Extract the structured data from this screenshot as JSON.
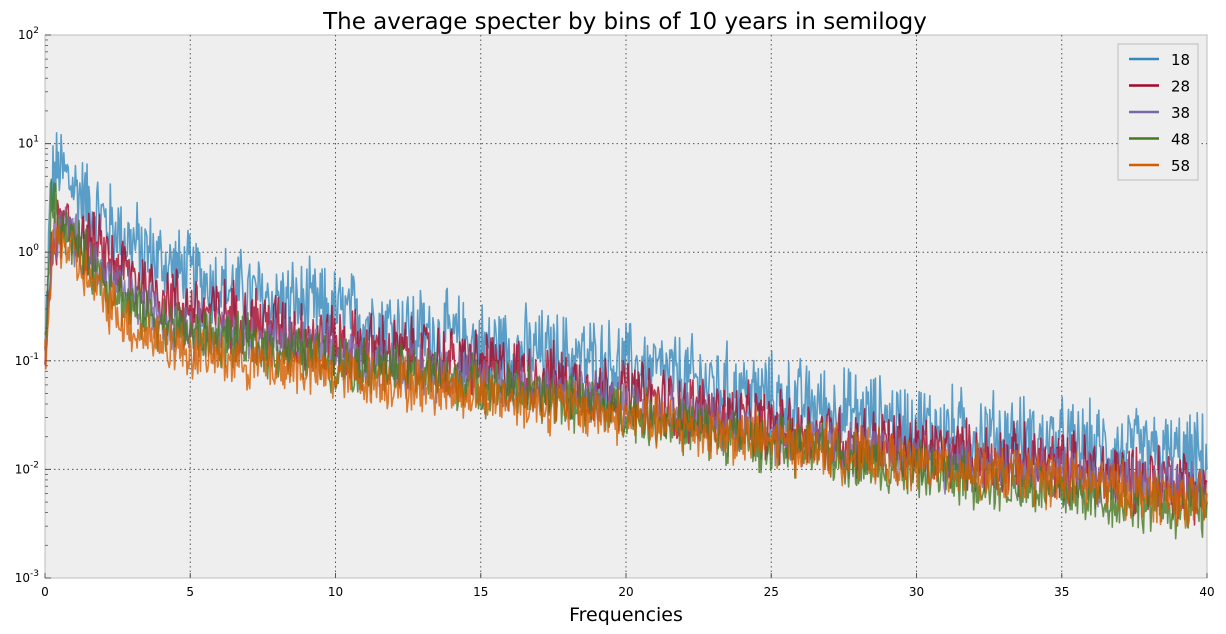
{
  "chart_data": {
    "type": "line",
    "title": "The average specter by bins of 10 years in semilogy",
    "xlabel": "Frequencies",
    "ylabel": "",
    "xlim": [
      0,
      40
    ],
    "ylim": [
      0.001,
      100
    ],
    "yscale": "log",
    "grid": true,
    "legend_position": "top-right",
    "x_ticks": [
      0,
      5,
      10,
      15,
      20,
      25,
      30,
      35,
      40
    ],
    "y_ticks": [
      {
        "value": 0.001,
        "base": "10",
        "exp": "-3"
      },
      {
        "value": 0.01,
        "base": "10",
        "exp": "-2"
      },
      {
        "value": 0.1,
        "base": "10",
        "exp": "-1"
      },
      {
        "value": 1,
        "base": "10",
        "exp": "0"
      },
      {
        "value": 10,
        "base": "10",
        "exp": "1"
      },
      {
        "value": 100,
        "base": "10",
        "exp": "2"
      }
    ],
    "series": [
      {
        "name": "18",
        "color": "#348ABD",
        "points": [
          [
            0,
            0.1
          ],
          [
            0.2,
            4.0
          ],
          [
            0.5,
            6.0
          ],
          [
            1,
            4.0
          ],
          [
            2,
            2.0
          ],
          [
            3,
            1.2
          ],
          [
            4,
            0.8
          ],
          [
            5,
            0.6
          ],
          [
            7,
            0.4
          ],
          [
            10,
            0.28
          ],
          [
            15,
            0.14
          ],
          [
            20,
            0.09
          ],
          [
            25,
            0.045
          ],
          [
            30,
            0.025
          ],
          [
            35,
            0.017
          ],
          [
            40,
            0.012
          ]
        ]
      },
      {
        "name": "28",
        "color": "#A60628",
        "points": [
          [
            0,
            0.1
          ],
          [
            0.3,
            1.5
          ],
          [
            0.8,
            1.8
          ],
          [
            1.5,
            1.2
          ],
          [
            3,
            0.6
          ],
          [
            5,
            0.3
          ],
          [
            7,
            0.25
          ],
          [
            10,
            0.15
          ],
          [
            15,
            0.09
          ],
          [
            20,
            0.05
          ],
          [
            25,
            0.025
          ],
          [
            30,
            0.015
          ],
          [
            35,
            0.011
          ],
          [
            40,
            0.007
          ]
        ]
      },
      {
        "name": "38",
        "color": "#7A68A6",
        "points": [
          [
            0,
            0.1
          ],
          [
            0.3,
            1.4
          ],
          [
            0.7,
            1.6
          ],
          [
            1.5,
            0.9
          ],
          [
            3,
            0.35
          ],
          [
            5,
            0.2
          ],
          [
            7,
            0.16
          ],
          [
            10,
            0.11
          ],
          [
            15,
            0.07
          ],
          [
            20,
            0.04
          ],
          [
            25,
            0.02
          ],
          [
            30,
            0.012
          ],
          [
            35,
            0.009
          ],
          [
            40,
            0.006
          ]
        ]
      },
      {
        "name": "48",
        "color": "#467821",
        "points": [
          [
            0,
            0.1
          ],
          [
            0.2,
            3.0
          ],
          [
            0.5,
            2.0
          ],
          [
            1.5,
            0.8
          ],
          [
            3,
            0.3
          ],
          [
            5,
            0.18
          ],
          [
            7,
            0.14
          ],
          [
            10,
            0.1
          ],
          [
            15,
            0.06
          ],
          [
            20,
            0.033
          ],
          [
            25,
            0.017
          ],
          [
            30,
            0.01
          ],
          [
            35,
            0.006
          ],
          [
            40,
            0.004
          ]
        ]
      },
      {
        "name": "58",
        "color": "#D55E00",
        "points": [
          [
            0,
            0.1
          ],
          [
            0.3,
            1.2
          ],
          [
            0.6,
            1.3
          ],
          [
            1.5,
            0.55
          ],
          [
            3,
            0.2
          ],
          [
            5,
            0.12
          ],
          [
            7,
            0.1
          ],
          [
            10,
            0.075
          ],
          [
            15,
            0.05
          ],
          [
            20,
            0.03
          ],
          [
            25,
            0.018
          ],
          [
            30,
            0.011
          ],
          [
            35,
            0.008
          ],
          [
            40,
            0.005
          ]
        ]
      }
    ]
  }
}
